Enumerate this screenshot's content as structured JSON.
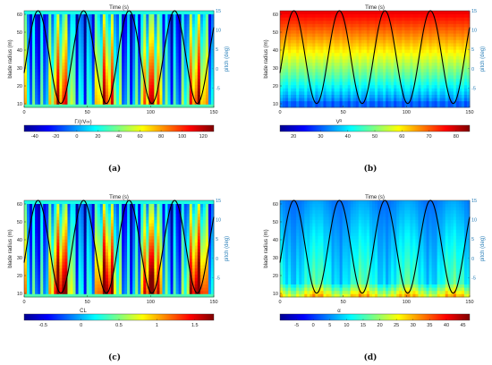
{
  "chart_data": [
    {
      "type": "heatmap",
      "caption": "(a)",
      "title": "Time (s)",
      "ylabel": "blade radius (m)",
      "y2label": "pitch (deg)",
      "cblabel": "Γ/(rV∞)",
      "xlim": [
        0,
        150
      ],
      "ylim": [
        8,
        62
      ],
      "y2lim": [
        -10,
        15
      ],
      "xticks": [
        0,
        50,
        100,
        150
      ],
      "yticks": [
        10,
        20,
        30,
        40,
        50,
        60
      ],
      "y2ticks": [
        -5,
        0,
        5,
        10,
        15
      ],
      "cbticks": [
        -40,
        -20,
        0,
        20,
        40,
        60,
        80,
        100,
        120
      ],
      "clim": [
        -50,
        130
      ],
      "pattern": "bands",
      "pitch_curve": {
        "mean_deg": 3,
        "amplitude_deg": 12,
        "period_s": 36,
        "phase_s": 2
      }
    },
    {
      "type": "heatmap",
      "caption": "(b)",
      "title": "Time (s)",
      "ylabel": "blade radius (m)",
      "y2label": "pitch (deg)",
      "cblabel": "Vᴿ",
      "xlim": [
        0,
        150
      ],
      "ylim": [
        8,
        62
      ],
      "y2lim": [
        -10,
        15
      ],
      "xticks": [
        0,
        50,
        100,
        150
      ],
      "yticks": [
        10,
        20,
        30,
        40,
        50,
        60
      ],
      "y2ticks": [
        -5,
        0,
        5,
        10,
        15
      ],
      "cbticks": [
        20,
        30,
        40,
        50,
        60,
        70,
        80
      ],
      "clim": [
        15,
        85
      ],
      "pattern": "radial",
      "pitch_curve": {
        "mean_deg": 3,
        "amplitude_deg": 12,
        "period_s": 36,
        "phase_s": 2
      }
    },
    {
      "type": "heatmap",
      "caption": "(c)",
      "title": "Time (s)",
      "ylabel": "blade radius (m)",
      "y2label": "pitch (deg)",
      "cblabel": "CL",
      "xlim": [
        0,
        150
      ],
      "ylim": [
        8,
        62
      ],
      "y2lim": [
        -10,
        15
      ],
      "xticks": [
        0,
        50,
        100,
        150
      ],
      "yticks": [
        10,
        20,
        30,
        40,
        50,
        60
      ],
      "y2ticks": [
        -5,
        0,
        5,
        10,
        15
      ],
      "cbticks": [
        -0.5,
        0,
        0.5,
        1,
        1.5
      ],
      "clim": [
        -0.75,
        1.75
      ],
      "pattern": "bandsHigh",
      "pitch_curve": {
        "mean_deg": 3,
        "amplitude_deg": 12,
        "period_s": 36,
        "phase_s": 2
      }
    },
    {
      "type": "heatmap",
      "caption": "(d)",
      "title": "Time (s)",
      "ylabel": "blade radius (m)",
      "y2label": "pitch (deg)",
      "cblabel": "α",
      "xlim": [
        0,
        150
      ],
      "ylim": [
        8,
        62
      ],
      "y2lim": [
        -10,
        15
      ],
      "xticks": [
        0,
        50,
        100,
        150
      ],
      "yticks": [
        10,
        20,
        30,
        40,
        50,
        60
      ],
      "y2ticks": [
        -5,
        0,
        5,
        10,
        15
      ],
      "cbticks": [
        -5,
        0,
        5,
        10,
        15,
        20,
        25,
        30,
        35,
        40,
        45
      ],
      "clim": [
        -10,
        47
      ],
      "pattern": "alpha",
      "pitch_curve": {
        "mean_deg": 3,
        "amplitude_deg": 12,
        "period_s": 36,
        "phase_s": 2
      }
    }
  ],
  "colors": {
    "pitch_line": "#000000",
    "right_axis": "#2a7fb8",
    "colormap": [
      "#00008f",
      "#0000ff",
      "#007fff",
      "#00ffff",
      "#7fff7f",
      "#ffff00",
      "#ff7f00",
      "#ff0000",
      "#7f0000"
    ]
  }
}
